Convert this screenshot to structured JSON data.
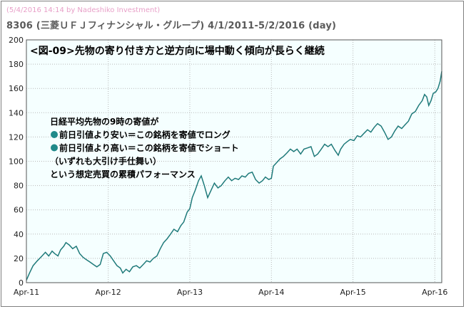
{
  "header": {
    "credit": "(5/4/2016 14:14 by Nadeshiko Investment)",
    "subtitle": "8306 (三菱ＵＦＪフィナンシャル・グループ) 4/1/2011-5/2/2016 (day)"
  },
  "colors": {
    "line": "#1f7a7a",
    "plot_bg": "#f5ffff",
    "grid": "#b8b8b8",
    "bullet": "#1f8a8a"
  },
  "chart_data": {
    "type": "line",
    "title": "<図-09>先物の寄り付き方と逆方向に場中動く傾向が長らく継続",
    "xlabel": "",
    "ylabel": "",
    "x_range": [
      "2011-04-01",
      "2016-05-02"
    ],
    "ylim": [
      0,
      200
    ],
    "y_ticks": [
      0,
      20,
      40,
      60,
      80,
      100,
      120,
      140,
      160,
      180,
      200
    ],
    "x_ticks": [
      {
        "date": "2011-04-01",
        "label": "Apr-11"
      },
      {
        "date": "2012-04-01",
        "label": "Apr-12"
      },
      {
        "date": "2013-04-01",
        "label": "Apr-13"
      },
      {
        "date": "2014-04-01",
        "label": "Apr-14"
      },
      {
        "date": "2015-04-01",
        "label": "Apr-15"
      },
      {
        "date": "2016-04-01",
        "label": "Apr-16"
      }
    ],
    "grid": true,
    "series": [
      {
        "points": [
          [
            "2011-04-01",
            2
          ],
          [
            "2011-04-15",
            8
          ],
          [
            "2011-05-01",
            14
          ],
          [
            "2011-05-20",
            18
          ],
          [
            "2011-06-10",
            22
          ],
          [
            "2011-06-25",
            25
          ],
          [
            "2011-07-10",
            22
          ],
          [
            "2011-07-25",
            26
          ],
          [
            "2011-08-05",
            24
          ],
          [
            "2011-08-20",
            22
          ],
          [
            "2011-09-01",
            27
          ],
          [
            "2011-09-15",
            30
          ],
          [
            "2011-09-25",
            33
          ],
          [
            "2011-10-10",
            31
          ],
          [
            "2011-10-25",
            28
          ],
          [
            "2011-11-10",
            30
          ],
          [
            "2011-11-25",
            24
          ],
          [
            "2011-12-10",
            21
          ],
          [
            "2011-12-25",
            19
          ],
          [
            "2012-01-10",
            17
          ],
          [
            "2012-01-25",
            15
          ],
          [
            "2012-02-10",
            13
          ],
          [
            "2012-02-25",
            15
          ],
          [
            "2012-03-10",
            24
          ],
          [
            "2012-03-25",
            25
          ],
          [
            "2012-04-10",
            22
          ],
          [
            "2012-04-25",
            18
          ],
          [
            "2012-05-10",
            14
          ],
          [
            "2012-05-25",
            12
          ],
          [
            "2012-06-05",
            8
          ],
          [
            "2012-06-20",
            11
          ],
          [
            "2012-07-05",
            9
          ],
          [
            "2012-07-20",
            13
          ],
          [
            "2012-08-05",
            14
          ],
          [
            "2012-08-20",
            12
          ],
          [
            "2012-09-05",
            15
          ],
          [
            "2012-09-20",
            18
          ],
          [
            "2012-10-05",
            17
          ],
          [
            "2012-10-20",
            20
          ],
          [
            "2012-11-05",
            22
          ],
          [
            "2012-11-20",
            28
          ],
          [
            "2012-12-05",
            33
          ],
          [
            "2012-12-20",
            36
          ],
          [
            "2013-01-05",
            40
          ],
          [
            "2013-01-20",
            44
          ],
          [
            "2013-02-05",
            42
          ],
          [
            "2013-02-20",
            47
          ],
          [
            "2013-03-05",
            50
          ],
          [
            "2013-03-20",
            58
          ],
          [
            "2013-04-01",
            61
          ],
          [
            "2013-04-12",
            70
          ],
          [
            "2013-04-25",
            76
          ],
          [
            "2013-05-10",
            84
          ],
          [
            "2013-05-22",
            88
          ],
          [
            "2013-06-05",
            80
          ],
          [
            "2013-06-20",
            70
          ],
          [
            "2013-07-05",
            76
          ],
          [
            "2013-07-20",
            82
          ],
          [
            "2013-08-05",
            78
          ],
          [
            "2013-08-20",
            80
          ],
          [
            "2013-09-05",
            84
          ],
          [
            "2013-09-20",
            87
          ],
          [
            "2013-10-05",
            84
          ],
          [
            "2013-10-20",
            86
          ],
          [
            "2013-11-05",
            85
          ],
          [
            "2013-11-20",
            88
          ],
          [
            "2013-12-05",
            87
          ],
          [
            "2013-12-20",
            90
          ],
          [
            "2014-01-05",
            91
          ],
          [
            "2014-01-20",
            85
          ],
          [
            "2014-02-05",
            82
          ],
          [
            "2014-02-20",
            84
          ],
          [
            "2014-03-05",
            87
          ],
          [
            "2014-03-20",
            85
          ],
          [
            "2014-04-01",
            86
          ],
          [
            "2014-04-10",
            96
          ],
          [
            "2014-04-20",
            98
          ],
          [
            "2014-05-10",
            102
          ],
          [
            "2014-05-25",
            104
          ],
          [
            "2014-06-10",
            107
          ],
          [
            "2014-06-25",
            110
          ],
          [
            "2014-07-10",
            108
          ],
          [
            "2014-07-25",
            110
          ],
          [
            "2014-08-10",
            106
          ],
          [
            "2014-08-25",
            110
          ],
          [
            "2014-09-10",
            111
          ],
          [
            "2014-09-25",
            112
          ],
          [
            "2014-10-10",
            104
          ],
          [
            "2014-10-25",
            106
          ],
          [
            "2014-11-10",
            110
          ],
          [
            "2014-11-25",
            114
          ],
          [
            "2014-12-10",
            112
          ],
          [
            "2014-12-25",
            114
          ],
          [
            "2015-01-10",
            109
          ],
          [
            "2015-01-25",
            105
          ],
          [
            "2015-02-05",
            110
          ],
          [
            "2015-02-20",
            114
          ],
          [
            "2015-03-05",
            116
          ],
          [
            "2015-03-20",
            118
          ],
          [
            "2015-04-05",
            117
          ],
          [
            "2015-04-20",
            121
          ],
          [
            "2015-05-05",
            120
          ],
          [
            "2015-05-20",
            123
          ],
          [
            "2015-06-05",
            126
          ],
          [
            "2015-06-20",
            124
          ],
          [
            "2015-07-05",
            128
          ],
          [
            "2015-07-20",
            131
          ],
          [
            "2015-08-05",
            129
          ],
          [
            "2015-08-20",
            124
          ],
          [
            "2015-09-05",
            118
          ],
          [
            "2015-09-20",
            120
          ],
          [
            "2015-10-05",
            125
          ],
          [
            "2015-10-20",
            129
          ],
          [
            "2015-11-05",
            127
          ],
          [
            "2015-11-20",
            130
          ],
          [
            "2015-12-05",
            133
          ],
          [
            "2015-12-20",
            139
          ],
          [
            "2016-01-05",
            141
          ],
          [
            "2016-01-20",
            146
          ],
          [
            "2016-02-05",
            150
          ],
          [
            "2016-02-15",
            155
          ],
          [
            "2016-02-25",
            153
          ],
          [
            "2016-03-05",
            146
          ],
          [
            "2016-03-15",
            150
          ],
          [
            "2016-03-25",
            156
          ],
          [
            "2016-04-05",
            157
          ],
          [
            "2016-04-15",
            160
          ],
          [
            "2016-04-25",
            166
          ],
          [
            "2016-05-02",
            174
          ]
        ]
      }
    ],
    "annotations": [
      {
        "text": "日経平均先物の9時の寄値が",
        "bullet": false
      },
      {
        "text": "前日引値より安い＝この銘柄を寄値でロング",
        "bullet": true
      },
      {
        "text": "前日引値より高い＝この銘柄を寄値でショート",
        "bullet": true
      },
      {
        "text": "（いずれも大引け手仕舞い）",
        "bullet": false
      },
      {
        "text": "という想定売買の累積パフォーマンス",
        "bullet": false
      }
    ]
  }
}
